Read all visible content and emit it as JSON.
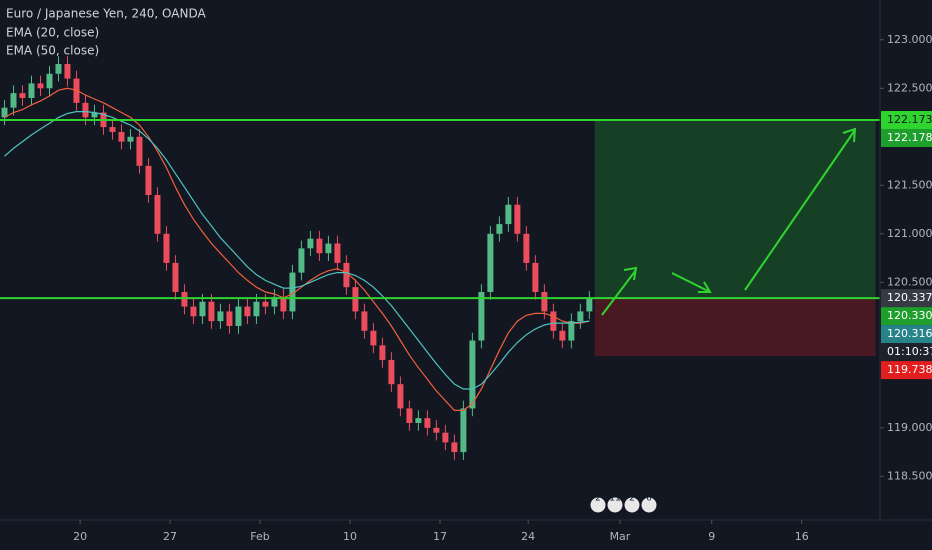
{
  "chart_data": {
    "type": "candlestick",
    "title": "Euro / Japanese Yen, 240, OANDA",
    "indicators": [
      "EMA (20, close)",
      "EMA (50, close)"
    ],
    "xlim": [
      0,
      97.8
    ],
    "ylim": [
      118.05,
      123.41
    ],
    "xticks": [
      {
        "value": 8.9,
        "label": "20"
      },
      {
        "value": 18.9,
        "label": "27"
      },
      {
        "value": 28.9,
        "label": "Feb"
      },
      {
        "value": 38.9,
        "label": "10"
      },
      {
        "value": 48.9,
        "label": "17"
      },
      {
        "value": 58.7,
        "label": "24"
      },
      {
        "value": 68.9,
        "label": "Mar"
      },
      {
        "value": 79.1,
        "label": "9"
      },
      {
        "value": 89.1,
        "label": "16"
      }
    ],
    "yticks": [
      {
        "value": 123,
        "label": "123.000"
      },
      {
        "value": 122.5,
        "label": "122.500"
      },
      {
        "value": 121.5,
        "label": "121.500"
      },
      {
        "value": 121,
        "label": "121.000"
      },
      {
        "value": 120.5,
        "label": "120.500"
      },
      {
        "value": 119,
        "label": "119.000"
      },
      {
        "value": 118.5,
        "label": "118.500"
      }
    ],
    "up_color": "#53b987",
    "down_color": "#eb4d5c",
    "open": [
      122.2,
      122.3,
      122.45,
      122.4,
      122.55,
      122.5,
      122.65,
      122.75,
      122.6,
      122.35,
      122.2,
      122.25,
      122.1,
      122.05,
      121.95,
      122.0,
      121.7,
      121.4,
      121.0,
      120.7,
      120.4,
      120.25,
      120.15,
      120.3,
      120.1,
      120.2,
      120.05,
      120.25,
      120.15,
      120.3,
      120.25,
      120.35,
      120.2,
      120.6,
      120.85,
      120.95,
      120.8,
      120.9,
      120.7,
      120.45,
      120.2,
      120.0,
      119.85,
      119.7,
      119.45,
      119.2,
      119.05,
      119.1,
      119.0,
      118.95,
      118.85,
      118.75,
      119.2,
      119.9,
      120.4,
      121.0,
      121.1,
      121.3,
      121.0,
      120.7,
      120.4,
      120.2,
      120.0,
      119.9,
      120.1,
      120.2
    ],
    "high": [
      122.38,
      122.53,
      122.53,
      122.63,
      122.63,
      122.73,
      122.83,
      122.83,
      122.68,
      122.43,
      122.33,
      122.33,
      122.18,
      122.13,
      122.08,
      122.08,
      121.78,
      121.48,
      121.08,
      120.78,
      120.48,
      120.33,
      120.38,
      120.38,
      120.28,
      120.28,
      120.33,
      120.33,
      120.38,
      120.38,
      120.43,
      120.43,
      120.68,
      120.93,
      121.03,
      121.03,
      120.98,
      120.98,
      120.78,
      120.53,
      120.28,
      120.08,
      119.93,
      119.78,
      119.53,
      119.28,
      119.18,
      119.18,
      119.08,
      119.03,
      118.93,
      119.28,
      119.98,
      120.48,
      121.08,
      121.18,
      121.38,
      121.38,
      121.08,
      120.78,
      120.48,
      120.28,
      120.08,
      120.18,
      120.28,
      120.41
    ],
    "low": [
      122.12,
      122.22,
      122.32,
      122.32,
      122.42,
      122.42,
      122.57,
      122.52,
      122.27,
      122.12,
      122.12,
      122.02,
      121.97,
      121.87,
      121.87,
      121.62,
      121.32,
      120.92,
      120.62,
      120.32,
      120.17,
      120.07,
      120.07,
      120.02,
      120.02,
      119.97,
      119.97,
      120.07,
      120.07,
      120.17,
      120.17,
      120.12,
      120.12,
      120.52,
      120.77,
      120.72,
      120.72,
      120.62,
      120.37,
      120.12,
      119.92,
      119.77,
      119.62,
      119.37,
      119.12,
      118.97,
      118.97,
      118.92,
      118.87,
      118.77,
      118.67,
      118.67,
      119.12,
      119.82,
      120.32,
      120.92,
      121.02,
      120.92,
      120.62,
      120.32,
      120.12,
      119.92,
      119.82,
      119.82,
      120.02,
      120.12
    ],
    "close": [
      122.3,
      122.45,
      122.4,
      122.55,
      122.5,
      122.65,
      122.75,
      122.6,
      122.35,
      122.2,
      122.25,
      122.1,
      122.05,
      121.95,
      122.0,
      121.7,
      121.4,
      121.0,
      120.7,
      120.4,
      120.25,
      120.15,
      120.3,
      120.1,
      120.2,
      120.05,
      120.25,
      120.15,
      120.3,
      120.25,
      120.35,
      120.2,
      120.6,
      120.85,
      120.95,
      120.8,
      120.9,
      120.7,
      120.45,
      120.2,
      120.0,
      119.85,
      119.7,
      119.45,
      119.2,
      119.05,
      119.1,
      119.0,
      118.95,
      118.85,
      118.75,
      119.2,
      119.9,
      120.4,
      121.0,
      121.1,
      121.3,
      121.0,
      120.7,
      120.4,
      120.2,
      120.0,
      119.9,
      120.1,
      120.2,
      120.33
    ],
    "series": [
      {
        "color": "#f0603c",
        "values": [
          122.2,
          122.25,
          122.28,
          122.33,
          122.37,
          122.42,
          122.48,
          122.5,
          122.48,
          122.43,
          122.39,
          122.35,
          122.3,
          122.25,
          122.2,
          122.12,
          122.0,
          121.85,
          121.68,
          121.48,
          121.3,
          121.15,
          121.02,
          120.9,
          120.8,
          120.7,
          120.6,
          120.52,
          120.45,
          120.4,
          120.38,
          120.34,
          120.38,
          120.45,
          120.52,
          120.58,
          120.62,
          120.64,
          120.6,
          120.52,
          120.42,
          120.3,
          120.18,
          120.05,
          119.9,
          119.75,
          119.62,
          119.5,
          119.38,
          119.28,
          119.18,
          119.18,
          119.25,
          119.4,
          119.6,
          119.8,
          119.98,
          120.1,
          120.16,
          120.18,
          120.18,
          120.15,
          120.1,
          120.08,
          120.08,
          120.1
        ]
      },
      {
        "color": "#4fc3c0",
        "values": [
          121.8,
          121.88,
          121.95,
          122.02,
          122.08,
          122.14,
          122.2,
          122.24,
          122.26,
          122.26,
          122.25,
          122.23,
          122.2,
          122.16,
          122.12,
          122.06,
          121.98,
          121.88,
          121.76,
          121.62,
          121.48,
          121.34,
          121.2,
          121.08,
          120.96,
          120.86,
          120.76,
          120.66,
          120.58,
          120.52,
          120.48,
          120.44,
          120.44,
          120.46,
          120.5,
          120.54,
          120.58,
          120.6,
          120.6,
          120.57,
          120.52,
          120.45,
          120.36,
          120.26,
          120.14,
          120.02,
          119.9,
          119.78,
          119.66,
          119.55,
          119.45,
          119.4,
          119.4,
          119.45,
          119.55,
          119.66,
          119.78,
          119.88,
          119.96,
          120.02,
          120.06,
          120.08,
          120.08,
          120.08,
          120.09,
          120.1
        ]
      }
    ],
    "hlines": [
      122.173,
      120.337
    ],
    "hline_color": "#2fd42f",
    "position": {
      "entry": 120.337,
      "target": 122.178,
      "stop": 119.738,
      "x_start": 66.1,
      "x_end": 97.3
    },
    "price_labels": [
      {
        "value": 122.173,
        "label": "122.173",
        "color": "#2fd42f"
      },
      {
        "value": 122.178,
        "label": "122.178",
        "color": "#1e9e2a"
      },
      {
        "value": 120.337,
        "label": "120.337",
        "color": "#363a45"
      },
      {
        "value": 120.33,
        "label": "120.330",
        "color": "#1e9e2a"
      },
      {
        "value": 120.316,
        "label": "120.316",
        "color": "#26838a"
      },
      {
        "value": 120.31,
        "label": "01:10:37",
        "color": "#1e222d"
      },
      {
        "value": 119.738,
        "label": "119.738",
        "color": "#e31e1e"
      }
    ],
    "events": [
      "2",
      "11",
      "2",
      "6"
    ]
  }
}
